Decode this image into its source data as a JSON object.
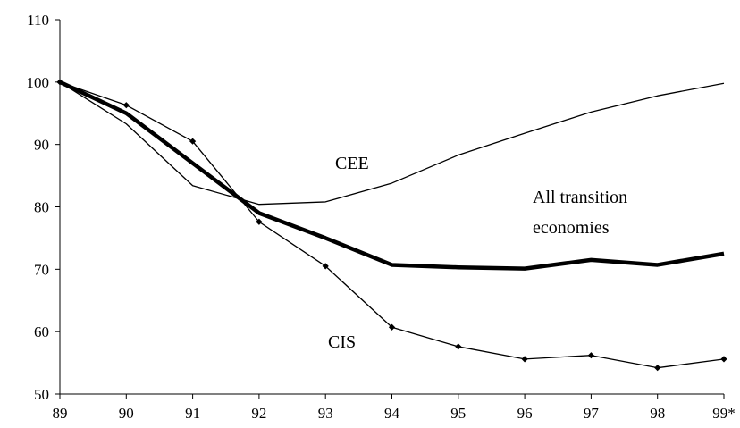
{
  "chart_data": {
    "type": "line",
    "title": "",
    "xlabel": "",
    "ylabel": "",
    "x": [
      "89",
      "90",
      "91",
      "92",
      "93",
      "94",
      "95",
      "96",
      "97",
      "98",
      "99*"
    ],
    "ylim": [
      50,
      110
    ],
    "yticks": [
      50,
      60,
      70,
      80,
      90,
      100,
      110
    ],
    "grid": false,
    "legend": "none",
    "series": [
      {
        "name": "CEE",
        "values": [
          100,
          93.3,
          83.4,
          80.4,
          80.8,
          83.8,
          88.3,
          91.8,
          95.2,
          97.8,
          99.8
        ],
        "color": "#000000",
        "markers": false,
        "weight": "thin"
      },
      {
        "name": "All transition economies",
        "label_lines": [
          "All transition",
          "economies"
        ],
        "values": [
          100,
          95,
          87,
          79,
          75,
          70.7,
          70.3,
          70.1,
          71.5,
          70.7,
          72.5
        ],
        "color": "#000000",
        "markers": false,
        "weight": "thick"
      },
      {
        "name": "CIS",
        "values": [
          100,
          96.3,
          90.5,
          77.6,
          70.5,
          60.7,
          57.6,
          55.6,
          56.2,
          54.2,
          55.6
        ],
        "color": "#000000",
        "markers": true,
        "weight": "thin"
      }
    ]
  }
}
